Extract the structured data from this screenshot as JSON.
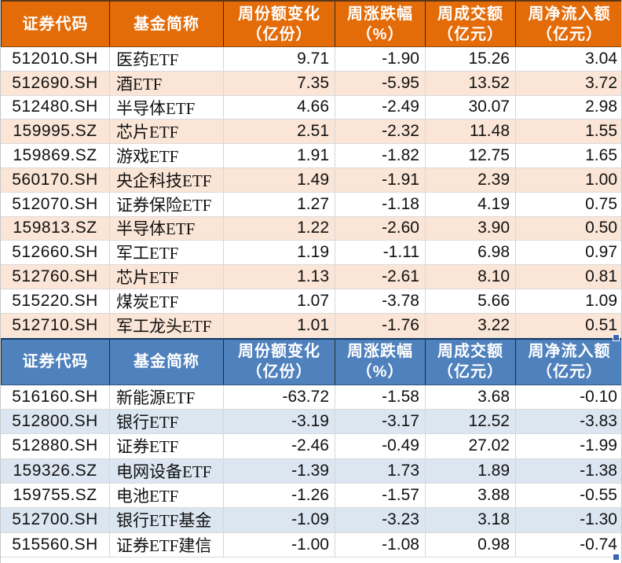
{
  "meta": {
    "accent_orange": "#E36C09",
    "accent_orange_stripe": "#FBE5D6",
    "accent_blue": "#4F81BD",
    "accent_blue_stripe": "#DCE6F1",
    "header_text_color": "#FFFFFF",
    "fill_handle_color": "#3A66B0"
  },
  "columns": [
    {
      "key": "code",
      "line1": "证券代码",
      "line2": ""
    },
    {
      "key": "fund-name",
      "line1": "基金简称",
      "line2": ""
    },
    {
      "key": "share-change",
      "line1": "周份额变化",
      "line2": "（亿份）"
    },
    {
      "key": "pct-change",
      "line1": "周涨跌幅",
      "line2": "（%）"
    },
    {
      "key": "turnover",
      "line1": "周成交额",
      "line2": "（亿元）"
    },
    {
      "key": "net-inflow",
      "line1": "周净流入额",
      "line2": "（亿元）"
    }
  ],
  "inflow_table": {
    "rows": [
      [
        "512010.SH",
        "医药ETF",
        "9.71",
        "-1.90",
        "15.26",
        "3.04"
      ],
      [
        "512690.SH",
        "酒ETF",
        "7.35",
        "-5.95",
        "13.52",
        "3.72"
      ],
      [
        "512480.SH",
        "半导体ETF",
        "4.66",
        "-2.49",
        "30.07",
        "2.98"
      ],
      [
        "159995.SZ",
        "芯片ETF",
        "2.51",
        "-2.32",
        "11.48",
        "1.55"
      ],
      [
        "159869.SZ",
        "游戏ETF",
        "1.91",
        "-1.82",
        "12.75",
        "1.65"
      ],
      [
        "560170.SH",
        "央企科技ETF",
        "1.49",
        "-1.91",
        "2.39",
        "1.00"
      ],
      [
        "512070.SH",
        "证券保险ETF",
        "1.27",
        "-1.18",
        "4.19",
        "0.75"
      ],
      [
        "159813.SZ",
        "半导体ETF",
        "1.22",
        "-2.60",
        "3.90",
        "0.50"
      ],
      [
        "512660.SH",
        "军工ETF",
        "1.19",
        "-1.11",
        "6.98",
        "0.97"
      ],
      [
        "512760.SH",
        "芯片ETF",
        "1.13",
        "-2.61",
        "8.10",
        "0.81"
      ],
      [
        "515220.SH",
        "煤炭ETF",
        "1.07",
        "-3.78",
        "5.66",
        "1.09"
      ],
      [
        "512710.SH",
        "军工龙头ETF",
        "1.01",
        "-1.76",
        "3.22",
        "0.51"
      ]
    ]
  },
  "outflow_table": {
    "rows": [
      [
        "516160.SH",
        "新能源ETF",
        "-63.72",
        "-1.58",
        "3.68",
        "-0.10"
      ],
      [
        "512800.SH",
        "银行ETF",
        "-3.19",
        "-3.17",
        "12.52",
        "-3.83"
      ],
      [
        "512880.SH",
        "证券ETF",
        "-2.46",
        "-0.49",
        "27.02",
        "-1.99"
      ],
      [
        "159326.SZ",
        "电网设备ETF",
        "-1.39",
        "1.73",
        "1.89",
        "-1.38"
      ],
      [
        "159755.SZ",
        "电池ETF",
        "-1.26",
        "-1.57",
        "3.88",
        "-0.55"
      ],
      [
        "512700.SH",
        "银行ETF基金",
        "-1.09",
        "-3.23",
        "3.18",
        "-1.30"
      ],
      [
        "515560.SH",
        "证券ETF建信",
        "-1.00",
        "-1.08",
        "0.98",
        "-0.74"
      ]
    ]
  }
}
